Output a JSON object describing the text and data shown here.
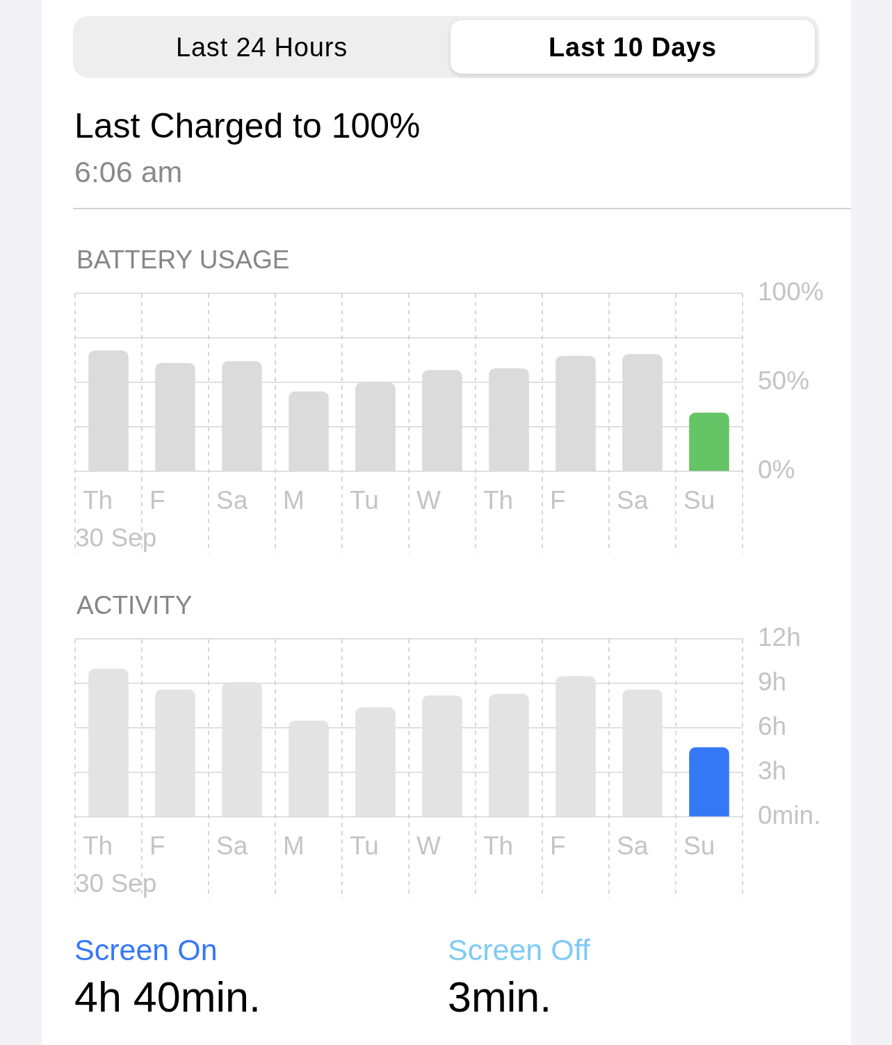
{
  "chart_data": [
    {
      "type": "bar",
      "title": "BATTERY USAGE",
      "annotations": [
        "Last 24 Hours",
        "Last 10 Days",
        "Last Charged to 100%",
        "6:06 am"
      ],
      "categories": [
        "Th",
        "F",
        "Sa",
        "M",
        "Tu",
        "W",
        "Th",
        "F",
        "Sa",
        "Su"
      ],
      "values": [
        68,
        61,
        62,
        45,
        50,
        57,
        58,
        65,
        66,
        33
      ],
      "colors": [
        "#dbdbdb",
        "#dbdbdb",
        "#dbdbdb",
        "#dbdbdb",
        "#dbdbdb",
        "#dbdbdb",
        "#dbdbdb",
        "#dbdbdb",
        "#dbdbdb",
        "#65c466"
      ],
      "xlabel": "30 Sep",
      "ylim": [
        0,
        100
      ],
      "yticks": [
        {
          "value": 0,
          "label": "0%"
        },
        {
          "value": 25,
          "label": null
        },
        {
          "value": 50,
          "label": "50%"
        },
        {
          "value": 75,
          "label": null
        },
        {
          "value": 100,
          "label": "100%"
        }
      ],
      "grid": true
    },
    {
      "type": "bar",
      "title": "ACTIVITY",
      "annotations": [
        "Screen On",
        "4h 40min.",
        "Screen Off",
        "3min."
      ],
      "categories": [
        "Th",
        "F",
        "Sa",
        "M",
        "Tu",
        "W",
        "Th",
        "F",
        "Sa",
        "Su"
      ],
      "values": [
        10,
        8.6,
        9.1,
        6.5,
        7.4,
        8.2,
        8.3,
        9.5,
        8.6,
        4.7
      ],
      "colors": [
        "#e3e3e3",
        "#e3e3e3",
        "#e3e3e3",
        "#e3e3e3",
        "#e3e3e3",
        "#e3e3e3",
        "#e3e3e3",
        "#e3e3e3",
        "#e3e3e3",
        "#3478f6"
      ],
      "xlabel": "30 Sep",
      "ylim": [
        0,
        12
      ],
      "yticks": [
        {
          "value": 0,
          "label": "0min."
        },
        {
          "value": 3,
          "label": "3h"
        },
        {
          "value": 6,
          "label": "6h"
        },
        {
          "value": 9,
          "label": "9h"
        },
        {
          "value": 12,
          "label": "12h"
        }
      ],
      "grid": true
    }
  ]
}
